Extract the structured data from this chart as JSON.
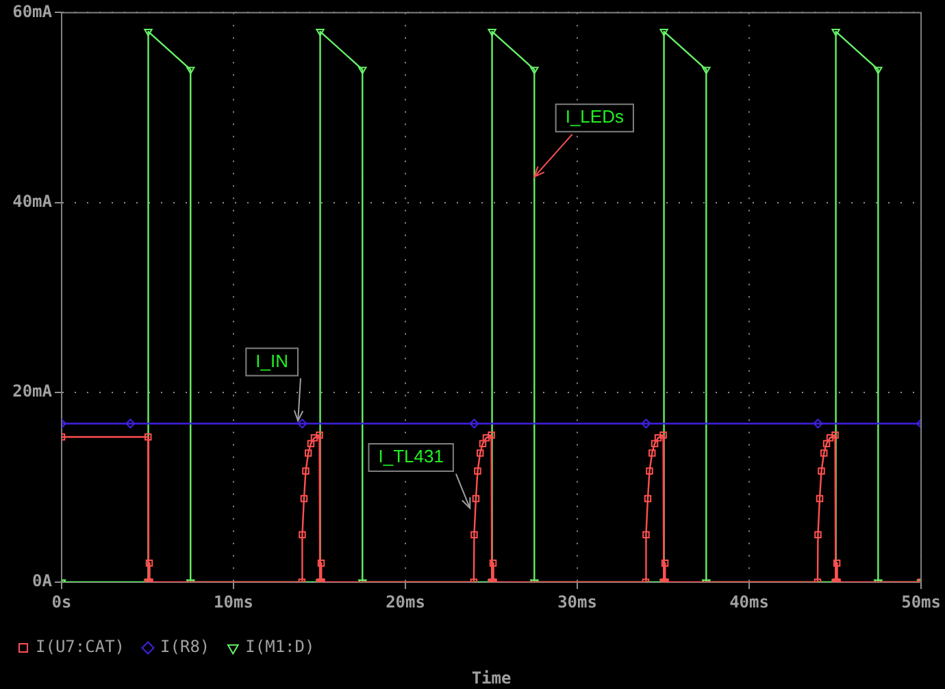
{
  "chart_data": {
    "type": "line",
    "xlabel": "Time",
    "xlim": [
      0,
      50
    ],
    "ylim": [
      0,
      60
    ],
    "xticks": [
      {
        "value": 0,
        "label": "0s"
      },
      {
        "value": 10,
        "label": "10ms"
      },
      {
        "value": 20,
        "label": "20ms"
      },
      {
        "value": 30,
        "label": "30ms"
      },
      {
        "value": 40,
        "label": "40ms"
      },
      {
        "value": 50,
        "label": "50ms"
      }
    ],
    "yticks": [
      {
        "value": 0,
        "label": "0A"
      },
      {
        "value": 20,
        "label": "20mA"
      },
      {
        "value": 40,
        "label": "40mA"
      },
      {
        "value": 60,
        "label": "60mA"
      }
    ],
    "grid": true,
    "legend": "bottom",
    "line_style": "solid",
    "series": [
      {
        "name": "I(U7:CAT)",
        "color": "#ff5050",
        "marker": "square",
        "x": [
          0,
          5.03,
          5.03,
          5.08,
          5.1,
          5.12,
          13.98,
          14,
          14.1,
          14.2,
          14.35,
          14.5,
          14.7,
          15,
          15.03,
          15.08,
          15.1,
          15.12,
          23.98,
          24,
          24.1,
          24.2,
          24.35,
          24.5,
          24.7,
          25,
          25.03,
          25.08,
          25.1,
          25.12,
          33.98,
          34,
          34.1,
          34.2,
          34.35,
          34.5,
          34.7,
          35,
          35.03,
          35.08,
          35.1,
          35.12,
          43.98,
          44,
          44.1,
          44.2,
          44.35,
          44.5,
          44.7,
          45,
          45.03,
          45.08,
          45.1,
          45.12,
          50
        ],
        "values": [
          15.3,
          15.3,
          0,
          0,
          2,
          0,
          0,
          5,
          8.8,
          11.7,
          13.6,
          14.6,
          15.2,
          15.5,
          0,
          0,
          2,
          0,
          0,
          5,
          8.8,
          11.7,
          13.6,
          14.6,
          15.2,
          15.5,
          0,
          0,
          2,
          0,
          0,
          5,
          8.8,
          11.7,
          13.6,
          14.6,
          15.2,
          15.5,
          0,
          0,
          2,
          0,
          0,
          5,
          8.8,
          11.7,
          13.6,
          14.6,
          15.2,
          15.5,
          0,
          0,
          2,
          0,
          0
        ]
      },
      {
        "name": "I(R8)",
        "color": "#4020e0",
        "marker": "diamond",
        "x": [
          0,
          4,
          14,
          24,
          34,
          44,
          50
        ],
        "values": [
          16.7,
          16.7,
          16.7,
          16.7,
          16.7,
          16.7,
          16.7
        ]
      },
      {
        "name": "I(M1:D)",
        "color": "#66f066",
        "marker": "triangle",
        "x": [
          0,
          5.04,
          5.04,
          7.5,
          7.5,
          15.04,
          15.04,
          17.5,
          17.5,
          25.04,
          25.04,
          27.5,
          27.5,
          35.04,
          35.04,
          37.5,
          37.5,
          45.04,
          45.04,
          47.5,
          47.5,
          50
        ],
        "values": [
          0,
          0,
          58,
          54,
          0,
          0,
          58,
          54,
          0,
          0,
          58,
          54,
          0,
          0,
          58,
          54,
          0,
          0,
          58,
          54,
          0,
          0
        ]
      }
    ],
    "annotations": [
      {
        "text": "I_LEDs",
        "x": 27.5,
        "y": 42.7
      },
      {
        "text": "I_IN",
        "x": 13.75,
        "y": 17
      },
      {
        "text": "I_TL431",
        "x": 23.75,
        "y": 7.8
      }
    ]
  }
}
